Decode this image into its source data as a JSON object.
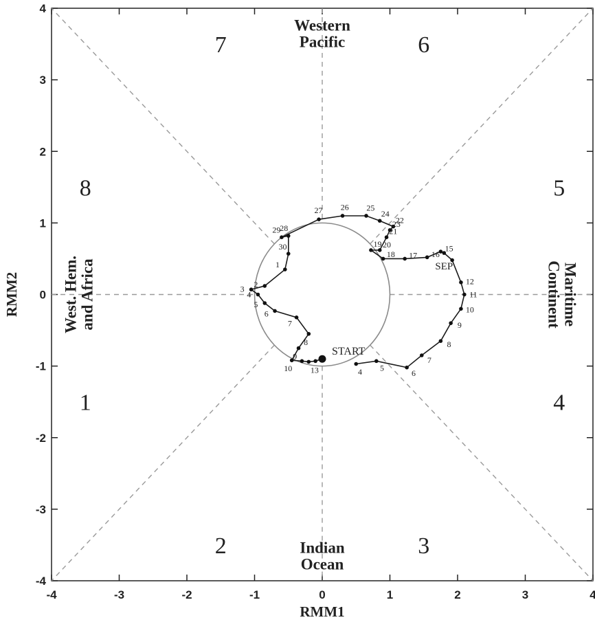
{
  "chart_data": {
    "type": "scatter",
    "xlabel": "RMM1",
    "ylabel": "RMM2",
    "xlim": [
      -4,
      4
    ],
    "ylim": [
      -4,
      4
    ],
    "x_ticks": [
      "-4",
      "-3",
      "-2",
      "-1",
      "0",
      "1",
      "2",
      "3",
      "4"
    ],
    "y_ticks": [
      "-4",
      "-3",
      "-2",
      "-1",
      "0",
      "1",
      "2",
      "3",
      "4"
    ],
    "grid": false,
    "unit_circle_radius": 1,
    "phases": [
      {
        "label": "1",
        "x": -3.5,
        "y": -1.5
      },
      {
        "label": "2",
        "x": -1.5,
        "y": -3.5
      },
      {
        "label": "3",
        "x": 1.5,
        "y": -3.5
      },
      {
        "label": "4",
        "x": 3.5,
        "y": -1.5
      },
      {
        "label": "5",
        "x": 3.5,
        "y": 1.5
      },
      {
        "label": "6",
        "x": 1.5,
        "y": 3.5
      },
      {
        "label": "7",
        "x": -1.5,
        "y": 3.5
      },
      {
        "label": "8",
        "x": -3.5,
        "y": 1.5
      }
    ],
    "regions": [
      {
        "lines": [
          "Western",
          "Pacific"
        ],
        "x": 0,
        "y": 3.65,
        "rotate": 0
      },
      {
        "lines": [
          "Indian",
          "Ocean"
        ],
        "x": 0,
        "y": -3.65,
        "rotate": 0
      },
      {
        "lines": [
          "West. Hem.",
          "and Africa"
        ],
        "x": -3.6,
        "y": 0,
        "rotate": -90
      },
      {
        "lines": [
          "Maritime",
          "Continent"
        ],
        "x": 3.55,
        "y": 0,
        "rotate": 90
      }
    ],
    "start_label": "START",
    "month_label": "SEP",
    "month_label_pos": [
      1.8,
      0.4
    ],
    "trajectory": [
      {
        "x": 0.0,
        "y": -0.9,
        "label": "START"
      },
      {
        "x": -0.1,
        "y": -0.93,
        "label": "13"
      },
      {
        "x": -0.2,
        "y": -0.94,
        "label": ""
      },
      {
        "x": -0.3,
        "y": -0.93,
        "label": ""
      },
      {
        "x": -0.45,
        "y": -0.92,
        "label": "10"
      },
      {
        "x": -0.35,
        "y": -0.75,
        "label": "9"
      },
      {
        "x": -0.2,
        "y": -0.55,
        "label": "8"
      },
      {
        "x": -0.38,
        "y": -0.32,
        "label": "7"
      },
      {
        "x": -0.7,
        "y": -0.23,
        "label": "6"
      },
      {
        "x": -0.85,
        "y": -0.12,
        "label": "5"
      },
      {
        "x": -0.95,
        "y": 0.0,
        "label": "4"
      },
      {
        "x": -1.05,
        "y": 0.07,
        "label": "3"
      },
      {
        "x": -0.85,
        "y": 0.12,
        "label": "2"
      },
      {
        "x": -0.55,
        "y": 0.35,
        "label": "1"
      },
      {
        "x": -0.5,
        "y": 0.57,
        "label": "30"
      },
      {
        "x": -0.5,
        "y": 0.82,
        "label": "28"
      },
      {
        "x": -0.6,
        "y": 0.8,
        "label": "29"
      },
      {
        "x": -0.05,
        "y": 1.05,
        "label": "27"
      },
      {
        "x": 0.3,
        "y": 1.1,
        "label": "26"
      },
      {
        "x": 0.65,
        "y": 1.1,
        "label": "25"
      },
      {
        "x": 0.85,
        "y": 1.03,
        "label": "24"
      },
      {
        "x": 1.05,
        "y": 0.95,
        "label": "22"
      },
      {
        "x": 1.0,
        "y": 0.9,
        "label": "23"
      },
      {
        "x": 0.95,
        "y": 0.8,
        "label": "21"
      },
      {
        "x": 0.85,
        "y": 0.62,
        "label": "20"
      },
      {
        "x": 0.72,
        "y": 0.62,
        "label": "19"
      },
      {
        "x": 0.9,
        "y": 0.5,
        "label": "18"
      },
      {
        "x": 1.22,
        "y": 0.5,
        "label": "17"
      },
      {
        "x": 1.55,
        "y": 0.52,
        "label": "16"
      },
      {
        "x": 1.75,
        "y": 0.6,
        "label": "15"
      },
      {
        "x": 1.8,
        "y": 0.58,
        "label": ""
      },
      {
        "x": 1.92,
        "y": 0.48,
        "label": ""
      },
      {
        "x": 2.05,
        "y": 0.17,
        "label": "12"
      },
      {
        "x": 2.1,
        "y": 0.0,
        "label": "11"
      },
      {
        "x": 2.05,
        "y": -0.2,
        "label": "10"
      },
      {
        "x": 1.9,
        "y": -0.4,
        "label": "9"
      },
      {
        "x": 1.75,
        "y": -0.65,
        "label": "8"
      },
      {
        "x": 1.47,
        "y": -0.85,
        "label": "7"
      },
      {
        "x": 1.25,
        "y": -1.02,
        "label": "6"
      },
      {
        "x": 0.8,
        "y": -0.93,
        "label": "5"
      },
      {
        "x": 0.5,
        "y": -0.97,
        "label": "4"
      }
    ]
  }
}
